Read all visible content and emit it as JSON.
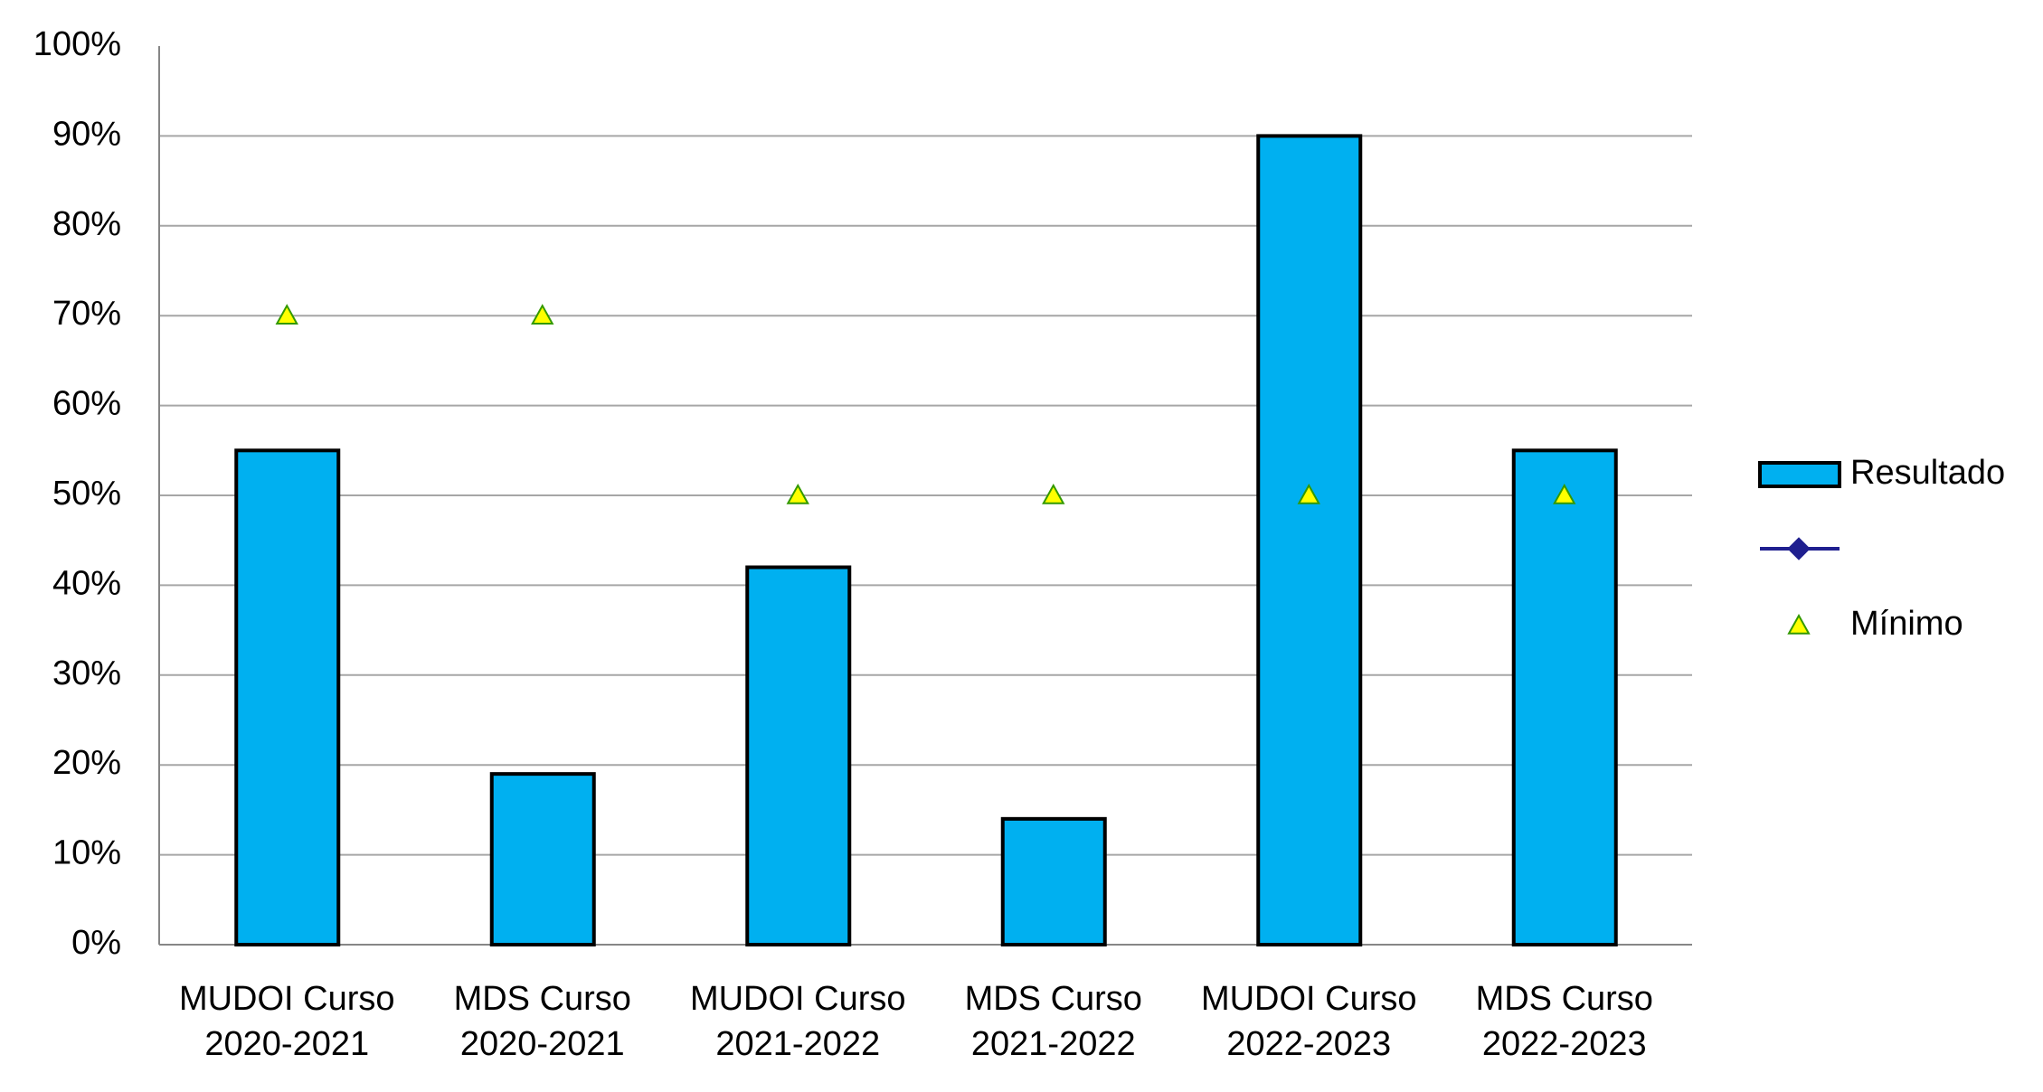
{
  "chart_data": {
    "type": "bar",
    "categories": [
      "MUDOI Curso 2020-2021",
      "MDS Curso 2020-2021",
      "MUDOI Curso 2021-2022",
      "MDS Curso 2021-2022",
      "MUDOI Curso 2022-2023",
      "MDS Curso 2022-2023"
    ],
    "series": [
      {
        "name": "Resultado",
        "type": "bar",
        "color": "#00b0f0",
        "values": [
          55,
          19,
          42,
          14,
          90,
          55
        ]
      },
      {
        "name": "Mínimo",
        "type": "scatter",
        "color": "#ffff00",
        "values": [
          70,
          70,
          50,
          50,
          50,
          50
        ]
      }
    ],
    "ylim": [
      0,
      100
    ],
    "yticks": [
      {
        "value": 0,
        "label": "0%"
      },
      {
        "value": 10,
        "label": "10%"
      },
      {
        "value": 20,
        "label": "20%"
      },
      {
        "value": 30,
        "label": "30%"
      },
      {
        "value": 40,
        "label": "40%"
      },
      {
        "value": 50,
        "label": "50%"
      },
      {
        "value": 60,
        "label": "60%"
      },
      {
        "value": 70,
        "label": "70%"
      },
      {
        "value": 80,
        "label": "80%"
      },
      {
        "value": 90,
        "label": "90%"
      },
      {
        "value": 100,
        "label": "100%"
      }
    ],
    "grid": true,
    "legend": "right"
  }
}
